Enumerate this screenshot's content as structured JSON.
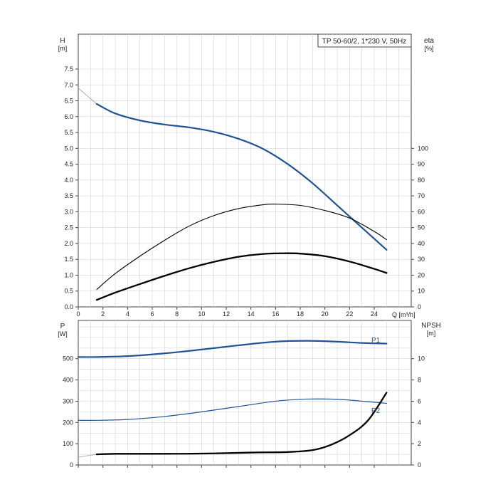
{
  "chart_data": [
    {
      "type": "line",
      "title": "TP 50-60/2, 1*230 V, 50Hz",
      "left_axis_label": "H",
      "left_axis_unit": "[m]",
      "right_axis_label": "eta",
      "right_axis_unit": "[%]",
      "x_axis_label": "Q [m³/h]",
      "xlim": [
        0,
        27
      ],
      "x_ticks": [
        "0",
        "2",
        "4",
        "6",
        "8",
        "10",
        "12",
        "14",
        "16",
        "18",
        "20",
        "22",
        "24"
      ],
      "ylim_left": [
        0,
        8.6
      ],
      "y_ticks_left": [
        "0.0",
        "0.5",
        "1.0",
        "1.5",
        "2.0",
        "2.5",
        "3.0",
        "3.5",
        "4.0",
        "4.5",
        "5.0",
        "5.5",
        "6.0",
        "6.5",
        "7.0",
        "7.5"
      ],
      "ylim_right_pct": [
        0,
        100
      ],
      "y_ticks_right": [
        "0",
        "10",
        "20",
        "30",
        "40",
        "50",
        "60",
        "70",
        "80",
        "90",
        "100"
      ],
      "grid": true,
      "series": [
        {
          "id": "H",
          "color": "#1f5496",
          "axis": "left",
          "x": [
            1.5,
            3,
            5,
            7,
            9,
            11,
            13,
            15,
            17,
            19,
            21,
            23,
            25
          ],
          "y": [
            6.4,
            6.1,
            5.88,
            5.75,
            5.66,
            5.52,
            5.3,
            4.98,
            4.5,
            3.9,
            3.2,
            2.5,
            1.8
          ],
          "extrapolation": {
            "x": [
              0,
              1.5
            ],
            "y": [
              6.9,
              6.4
            ],
            "color": "#9aa6b5"
          }
        },
        {
          "id": "eta-thin",
          "color": "#000000",
          "axis": "left",
          "x": [
            1.5,
            3,
            5,
            7,
            9,
            11,
            13,
            15,
            16,
            18,
            20,
            22,
            24,
            25
          ],
          "y": [
            0.55,
            1.05,
            1.6,
            2.1,
            2.55,
            2.88,
            3.1,
            3.22,
            3.24,
            3.2,
            3.04,
            2.8,
            2.38,
            2.12
          ]
        },
        {
          "id": "eta-thick",
          "color": "#000000",
          "axis": "left",
          "x": [
            1.5,
            3,
            5,
            7,
            9,
            11,
            13,
            15,
            16.5,
            18,
            20,
            22,
            24,
            25
          ],
          "y": [
            0.22,
            0.45,
            0.72,
            0.98,
            1.22,
            1.42,
            1.58,
            1.67,
            1.69,
            1.68,
            1.6,
            1.43,
            1.2,
            1.07
          ]
        }
      ]
    },
    {
      "type": "line",
      "left_axis_label": "P",
      "left_axis_unit": "[W]",
      "right_axis_label": "NPSH",
      "right_axis_unit": "[m]",
      "xlim": [
        0,
        27
      ],
      "ylim_left": [
        0,
        680
      ],
      "y_ticks_left": [
        "0",
        "100",
        "200",
        "300",
        "400",
        "500"
      ],
      "ylim_right": [
        0,
        13.6
      ],
      "y_ticks_right": [
        "0",
        "2",
        "4",
        "6",
        "8",
        "10"
      ],
      "grid": true,
      "series": [
        {
          "name": "P1",
          "color": "#1f5496",
          "axis": "left",
          "x": [
            0,
            1.5,
            4,
            7,
            10,
            13,
            16,
            18.5,
            21,
            23,
            25
          ],
          "y": [
            508,
            508,
            512,
            525,
            543,
            563,
            580,
            584,
            580,
            574,
            571
          ]
        },
        {
          "name": "P2",
          "color": "#1f5496",
          "axis": "left",
          "x": [
            0,
            1.5,
            4,
            7,
            10,
            13,
            16,
            18.5,
            21,
            23,
            25
          ],
          "y": [
            210,
            210,
            214,
            228,
            250,
            275,
            300,
            310,
            309,
            300,
            290
          ]
        },
        {
          "id": "NPSH",
          "color": "#000000",
          "axis": "right",
          "x": [
            1.5,
            3,
            6,
            10,
            14,
            17,
            19,
            20.5,
            22,
            23.5,
            25
          ],
          "y": [
            1.0,
            1.05,
            1.05,
            1.07,
            1.17,
            1.22,
            1.4,
            1.9,
            2.8,
            4.2,
            6.8
          ],
          "extrapolation": {
            "x": [
              0,
              1.5
            ],
            "y": [
              0.75,
              1.0
            ],
            "color": "#9aa6b5"
          }
        }
      ]
    }
  ]
}
